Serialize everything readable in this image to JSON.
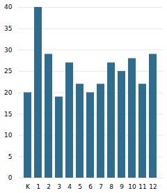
{
  "chart_data": {
    "type": "bar",
    "categories": [
      "K",
      "1",
      "2",
      "3",
      "4",
      "5",
      "6",
      "7",
      "8",
      "9",
      "10",
      "11",
      "12"
    ],
    "values": [
      20,
      40,
      29,
      19,
      27,
      22,
      20,
      22,
      27,
      25,
      28,
      22,
      29
    ],
    "color": "#2e6d8e",
    "ylim": [
      0,
      40
    ],
    "yticks": [
      0,
      5,
      10,
      15,
      20,
      25,
      30,
      35,
      40
    ],
    "grid": true
  }
}
